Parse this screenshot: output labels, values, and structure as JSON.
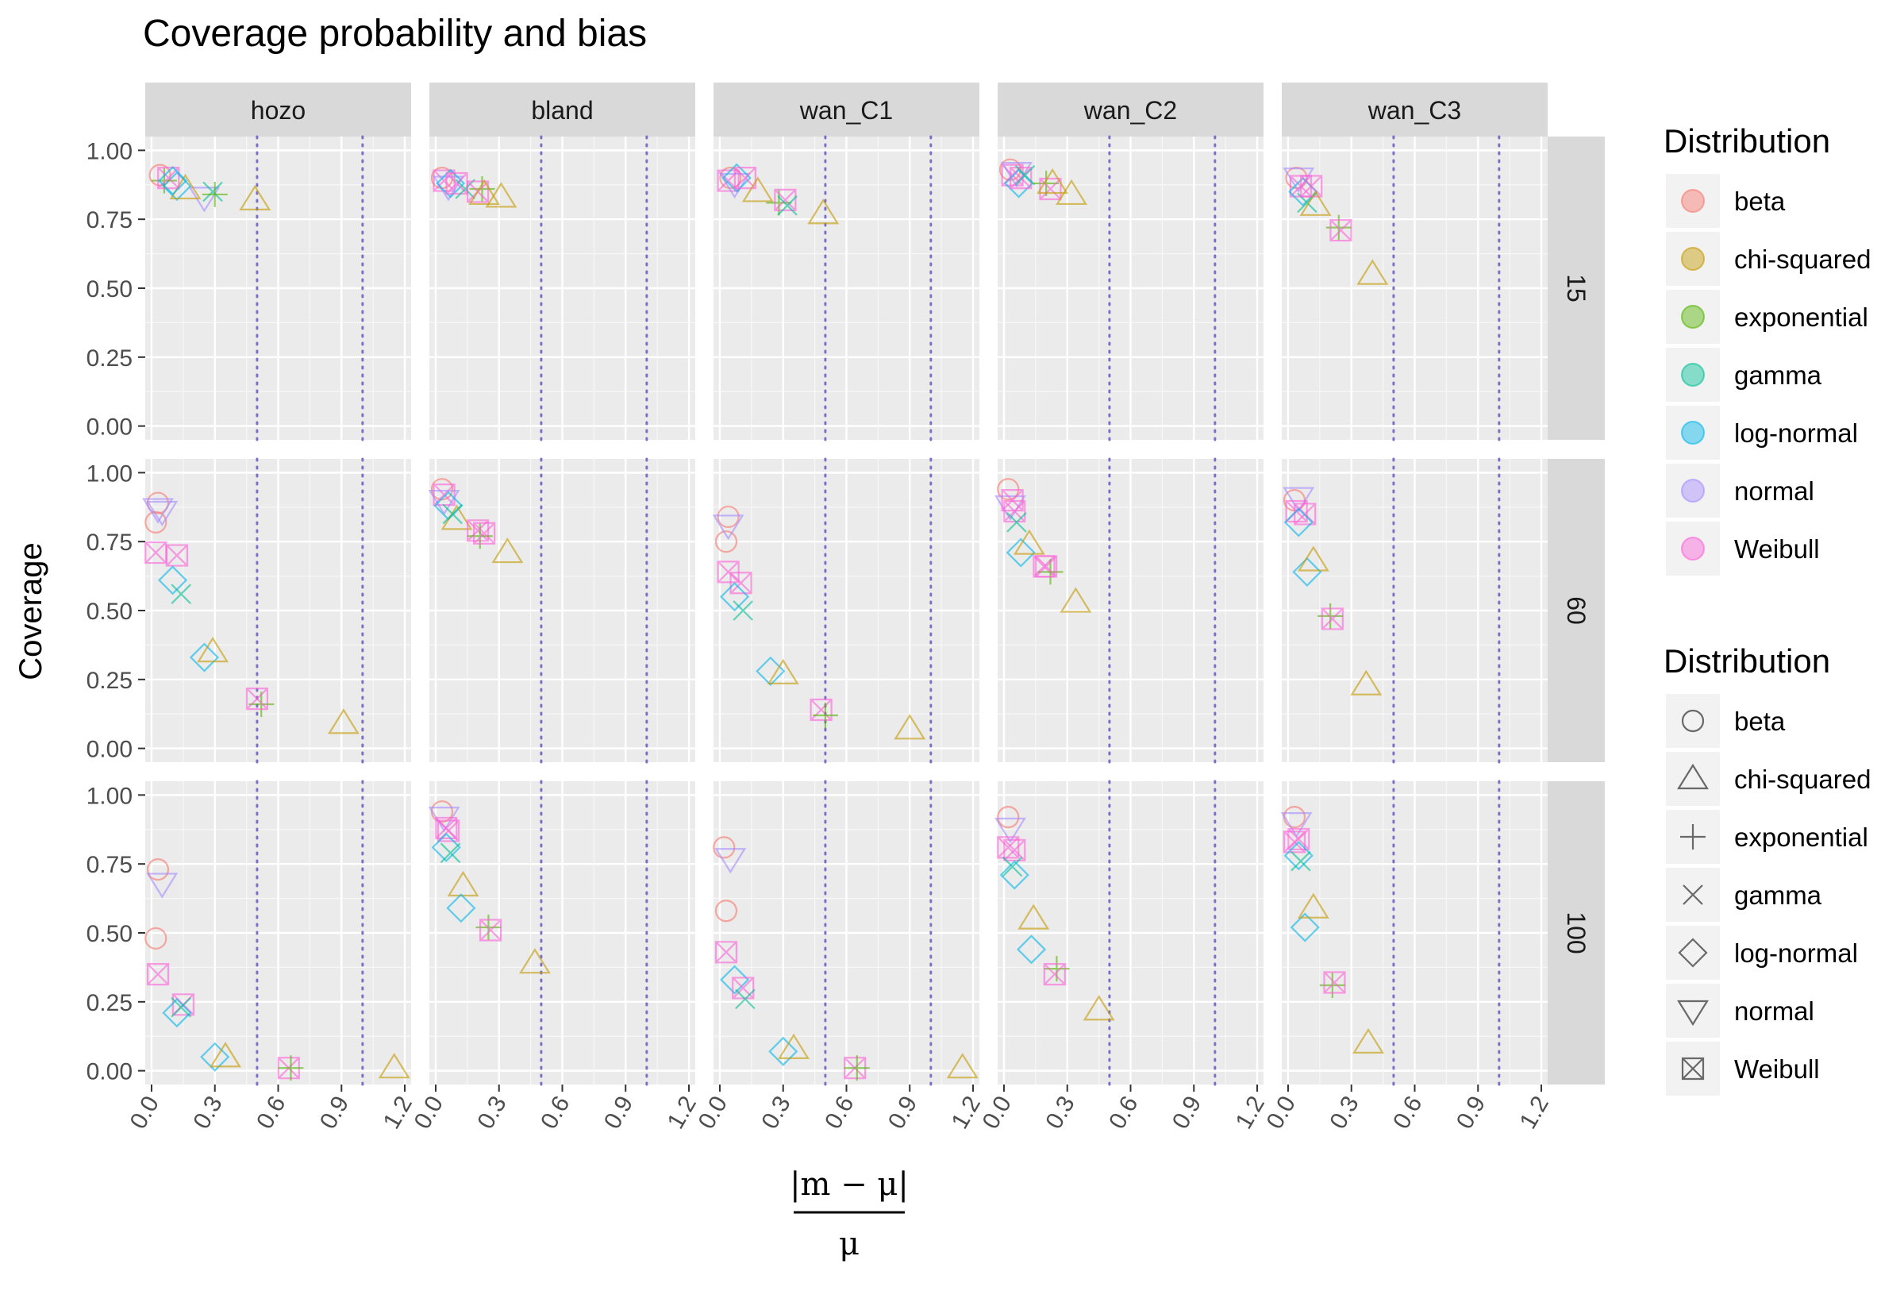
{
  "chart_data": {
    "type": "scatter",
    "title": "Coverage probability and bias",
    "ylabel": "Coverage",
    "xlabel_numerator": "|m − μ|",
    "xlabel_denominator": "μ",
    "facet_columns": [
      "hozo",
      "bland",
      "wan_C1",
      "wan_C2",
      "wan_C3"
    ],
    "facet_rows": [
      "15",
      "60",
      "100"
    ],
    "xlim": [
      -0.03,
      1.23
    ],
    "ylim": [
      -0.05,
      1.05
    ],
    "x_ticks": [
      0.0,
      0.3,
      0.6,
      0.9,
      1.2
    ],
    "x_tick_labels": [
      "0.0",
      "0.3",
      "0.6",
      "0.9",
      "1.2"
    ],
    "y_ticks": [
      0.0,
      0.25,
      0.5,
      0.75,
      1.0
    ],
    "y_tick_labels": [
      "0.00",
      "0.25",
      "0.50",
      "0.75",
      "1.00"
    ],
    "reference_lines_x": [
      0.5,
      1.0
    ],
    "grid": true,
    "legends": [
      {
        "title": "Distribution",
        "kind": "color",
        "entries": [
          "beta",
          "chi-squared",
          "exponential",
          "gamma",
          "log-normal",
          "normal",
          "Weibull"
        ]
      },
      {
        "title": "Distribution",
        "kind": "shape",
        "entries": [
          "beta",
          "chi-squared",
          "exponential",
          "gamma",
          "log-normal",
          "normal",
          "Weibull"
        ]
      }
    ],
    "legend_position": "right",
    "series": [
      {
        "name": "beta",
        "color": "#F8766D",
        "shape": "circle"
      },
      {
        "name": "chi-squared",
        "color": "#C49A00",
        "shape": "triangle"
      },
      {
        "name": "exponential",
        "color": "#53B400",
        "shape": "plus"
      },
      {
        "name": "gamma",
        "color": "#00C094",
        "shape": "cross"
      },
      {
        "name": "log-normal",
        "color": "#00B6EB",
        "shape": "diamond"
      },
      {
        "name": "normal",
        "color": "#A58AFF",
        "shape": "triangle-down"
      },
      {
        "name": "Weibull",
        "color": "#FB61D7",
        "shape": "boxcross"
      }
    ],
    "points": {
      "hozo": {
        "15": [
          [
            0.04,
            0.91
          ],
          [
            0.25,
            0.83
          ],
          [
            0.29,
            0.85
          ],
          [
            0.12,
            0.87
          ],
          [
            0.16,
            0.86
          ],
          [
            0.06,
            0.89
          ],
          [
            0.08,
            0.9
          ],
          [
            0.1,
            0.89
          ],
          [
            0.3,
            0.84
          ],
          [
            0.49,
            0.82
          ]
        ],
        "60": [
          [
            0.03,
            0.89
          ],
          [
            0.02,
            0.82
          ],
          [
            0.03,
            0.87
          ],
          [
            0.05,
            0.86
          ],
          [
            0.02,
            0.71
          ],
          [
            0.12,
            0.7
          ],
          [
            0.1,
            0.61
          ],
          [
            0.14,
            0.56
          ],
          [
            0.25,
            0.33
          ],
          [
            0.29,
            0.35
          ],
          [
            0.52,
            0.16
          ],
          [
            0.5,
            0.18
          ],
          [
            0.91,
            0.09
          ]
        ],
        "100": [
          [
            0.03,
            0.73
          ],
          [
            0.02,
            0.48
          ],
          [
            0.05,
            0.68
          ],
          [
            0.03,
            0.35
          ],
          [
            0.15,
            0.24
          ],
          [
            0.12,
            0.21
          ],
          [
            0.14,
            0.23
          ],
          [
            0.3,
            0.05
          ],
          [
            0.35,
            0.05
          ],
          [
            0.65,
            0.01
          ],
          [
            0.66,
            0.01
          ],
          [
            1.15,
            0.01
          ]
        ]
      },
      "bland": {
        "15": [
          [
            0.03,
            0.9
          ],
          [
            0.04,
            0.89
          ],
          [
            0.06,
            0.87
          ],
          [
            0.07,
            0.88
          ],
          [
            0.1,
            0.88
          ],
          [
            0.14,
            0.86
          ],
          [
            0.22,
            0.86
          ],
          [
            0.2,
            0.85
          ],
          [
            0.23,
            0.84
          ],
          [
            0.31,
            0.83
          ]
        ],
        "60": [
          [
            0.03,
            0.94
          ],
          [
            0.04,
            0.92
          ],
          [
            0.04,
            0.9
          ],
          [
            0.06,
            0.88
          ],
          [
            0.1,
            0.83
          ],
          [
            0.08,
            0.85
          ],
          [
            0.2,
            0.79
          ],
          [
            0.21,
            0.77
          ],
          [
            0.23,
            0.78
          ],
          [
            0.34,
            0.71
          ]
        ],
        "100": [
          [
            0.03,
            0.94
          ],
          [
            0.04,
            0.92
          ],
          [
            0.06,
            0.87
          ],
          [
            0.05,
            0.88
          ],
          [
            0.05,
            0.81
          ],
          [
            0.07,
            0.79
          ],
          [
            0.13,
            0.67
          ],
          [
            0.12,
            0.59
          ],
          [
            0.25,
            0.52
          ],
          [
            0.26,
            0.51
          ],
          [
            0.47,
            0.39
          ]
        ]
      },
      "wan_C1": {
        "15": [
          [
            0.05,
            0.9
          ],
          [
            0.04,
            0.89
          ],
          [
            0.07,
            0.88
          ],
          [
            0.08,
            0.9
          ],
          [
            0.12,
            0.9
          ],
          [
            0.18,
            0.85
          ],
          [
            0.28,
            0.81
          ],
          [
            0.31,
            0.82
          ],
          [
            0.32,
            0.8
          ],
          [
            0.49,
            0.77
          ]
        ],
        "60": [
          [
            0.04,
            0.84
          ],
          [
            0.03,
            0.75
          ],
          [
            0.04,
            0.81
          ],
          [
            0.04,
            0.64
          ],
          [
            0.1,
            0.6
          ],
          [
            0.07,
            0.55
          ],
          [
            0.11,
            0.5
          ],
          [
            0.24,
            0.28
          ],
          [
            0.3,
            0.27
          ],
          [
            0.48,
            0.14
          ],
          [
            0.5,
            0.12
          ],
          [
            0.9,
            0.07
          ]
        ],
        "100": [
          [
            0.02,
            0.81
          ],
          [
            0.03,
            0.58
          ],
          [
            0.05,
            0.77
          ],
          [
            0.03,
            0.43
          ],
          [
            0.07,
            0.33
          ],
          [
            0.11,
            0.3
          ],
          [
            0.12,
            0.26
          ],
          [
            0.3,
            0.07
          ],
          [
            0.35,
            0.08
          ],
          [
            0.64,
            0.01
          ],
          [
            0.65,
            0.01
          ],
          [
            1.15,
            0.01
          ]
        ]
      },
      "wan_C2": {
        "15": [
          [
            0.03,
            0.93
          ],
          [
            0.04,
            0.91
          ],
          [
            0.06,
            0.92
          ],
          [
            0.07,
            0.88
          ],
          [
            0.08,
            0.9
          ],
          [
            0.1,
            0.91
          ],
          [
            0.2,
            0.88
          ],
          [
            0.22,
            0.86
          ],
          [
            0.23,
            0.88
          ],
          [
            0.32,
            0.84
          ]
        ],
        "60": [
          [
            0.02,
            0.94
          ],
          [
            0.03,
            0.88
          ],
          [
            0.04,
            0.9
          ],
          [
            0.05,
            0.86
          ],
          [
            0.06,
            0.82
          ],
          [
            0.08,
            0.71
          ],
          [
            0.12,
            0.74
          ],
          [
            0.19,
            0.66
          ],
          [
            0.22,
            0.64
          ],
          [
            0.2,
            0.66
          ],
          [
            0.34,
            0.53
          ]
        ],
        "100": [
          [
            0.02,
            0.92
          ],
          [
            0.03,
            0.88
          ],
          [
            0.02,
            0.81
          ],
          [
            0.05,
            0.8
          ],
          [
            0.04,
            0.74
          ],
          [
            0.05,
            0.71
          ],
          [
            0.14,
            0.55
          ],
          [
            0.13,
            0.44
          ],
          [
            0.25,
            0.37
          ],
          [
            0.24,
            0.35
          ],
          [
            0.45,
            0.22
          ]
        ]
      },
      "wan_C3": {
        "15": [
          [
            0.04,
            0.9
          ],
          [
            0.05,
            0.9
          ],
          [
            0.06,
            0.87
          ],
          [
            0.07,
            0.85
          ],
          [
            0.09,
            0.81
          ],
          [
            0.11,
            0.87
          ],
          [
            0.13,
            0.8
          ],
          [
            0.24,
            0.72
          ],
          [
            0.25,
            0.71
          ],
          [
            0.4,
            0.55
          ]
        ],
        "60": [
          [
            0.03,
            0.9
          ],
          [
            0.05,
            0.91
          ],
          [
            0.04,
            0.86
          ],
          [
            0.08,
            0.85
          ],
          [
            0.05,
            0.82
          ],
          [
            0.09,
            0.64
          ],
          [
            0.12,
            0.68
          ],
          [
            0.2,
            0.48
          ],
          [
            0.21,
            0.47
          ],
          [
            0.37,
            0.23
          ]
        ],
        "100": [
          [
            0.03,
            0.92
          ],
          [
            0.04,
            0.9
          ],
          [
            0.03,
            0.83
          ],
          [
            0.05,
            0.84
          ],
          [
            0.05,
            0.78
          ],
          [
            0.06,
            0.76
          ],
          [
            0.08,
            0.52
          ],
          [
            0.12,
            0.59
          ],
          [
            0.21,
            0.31
          ],
          [
            0.22,
            0.32
          ],
          [
            0.38,
            0.1
          ]
        ]
      }
    },
    "point_series": {
      "hozo": {
        "15": [
          0,
          5,
          3,
          4,
          1,
          2,
          6,
          4,
          2,
          1
        ],
        "60": [
          0,
          0,
          5,
          5,
          6,
          6,
          4,
          3,
          4,
          1,
          2,
          6,
          1
        ],
        "100": [
          0,
          0,
          5,
          6,
          6,
          4,
          3,
          4,
          1,
          6,
          2,
          1
        ]
      },
      "bland": {
        "15": [
          0,
          6,
          5,
          4,
          6,
          3,
          2,
          6,
          1,
          1
        ],
        "60": [
          0,
          6,
          5,
          4,
          1,
          3,
          6,
          2,
          6,
          1
        ],
        "100": [
          0,
          5,
          6,
          6,
          4,
          3,
          1,
          4,
          2,
          6,
          1
        ]
      },
      "wan_C1": {
        "15": [
          0,
          6,
          5,
          4,
          6,
          1,
          2,
          6,
          3,
          1
        ],
        "60": [
          0,
          0,
          5,
          6,
          6,
          4,
          3,
          4,
          1,
          6,
          2,
          1
        ],
        "100": [
          0,
          0,
          5,
          6,
          4,
          6,
          3,
          4,
          1,
          6,
          2,
          1
        ]
      },
      "wan_C2": {
        "15": [
          0,
          6,
          5,
          4,
          6,
          3,
          2,
          6,
          1,
          1
        ],
        "60": [
          0,
          5,
          6,
          6,
          3,
          4,
          1,
          6,
          2,
          6,
          1
        ],
        "100": [
          0,
          5,
          6,
          6,
          3,
          4,
          1,
          4,
          2,
          6,
          1
        ]
      },
      "wan_C3": {
        "15": [
          0,
          5,
          6,
          4,
          3,
          6,
          1,
          2,
          6,
          1
        ],
        "60": [
          0,
          5,
          6,
          6,
          4,
          4,
          1,
          2,
          6,
          1
        ],
        "100": [
          0,
          5,
          6,
          6,
          4,
          3,
          4,
          1,
          2,
          6,
          1
        ]
      }
    }
  }
}
